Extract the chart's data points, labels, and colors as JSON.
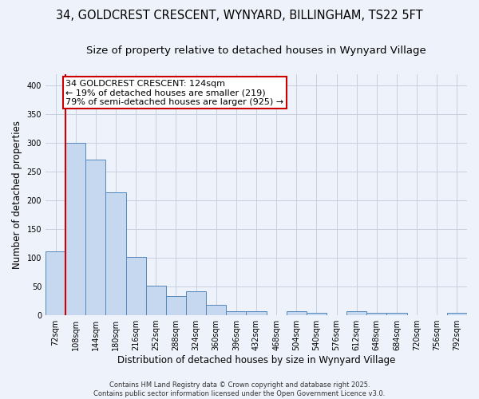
{
  "title_line1": "34, GOLDCREST CRESCENT, WYNYARD, BILLINGHAM, TS22 5FT",
  "title_line2": "Size of property relative to detached houses in Wynyard Village",
  "xlabel": "Distribution of detached houses by size in Wynyard Village",
  "ylabel": "Number of detached properties",
  "categories": [
    "72sqm",
    "108sqm",
    "144sqm",
    "180sqm",
    "216sqm",
    "252sqm",
    "288sqm",
    "324sqm",
    "360sqm",
    "396sqm",
    "432sqm",
    "468sqm",
    "504sqm",
    "540sqm",
    "576sqm",
    "612sqm",
    "648sqm",
    "684sqm",
    "720sqm",
    "756sqm",
    "792sqm"
  ],
  "values": [
    110,
    300,
    270,
    213,
    101,
    51,
    33,
    41,
    18,
    7,
    7,
    0,
    6,
    4,
    0,
    7,
    4,
    3,
    0,
    0,
    4
  ],
  "bar_color": "#c5d8f0",
  "bar_edge_color": "#5588bb",
  "redline_x": 0.5,
  "annotation_title": "34 GOLDCREST CRESCENT: 124sqm",
  "annotation_line2": "← 19% of detached houses are smaller (219)",
  "annotation_line3": "79% of semi-detached houses are larger (925) →",
  "annotation_box_facecolor": "#ffffff",
  "annotation_box_edge": "#cc0000",
  "redline_color": "#cc0000",
  "ylim": [
    0,
    420
  ],
  "yticks": [
    0,
    50,
    100,
    150,
    200,
    250,
    300,
    350,
    400
  ],
  "bg_color": "#eef2fa",
  "grid_color": "#c8d0e0",
  "footer": "Contains HM Land Registry data © Crown copyright and database right 2025.\nContains public sector information licensed under the Open Government Licence v3.0.",
  "title_fontsize": 10.5,
  "subtitle_fontsize": 9.5,
  "tick_fontsize": 7,
  "ylabel_fontsize": 8.5,
  "xlabel_fontsize": 8.5,
  "annotation_fontsize": 8,
  "footer_fontsize": 6
}
